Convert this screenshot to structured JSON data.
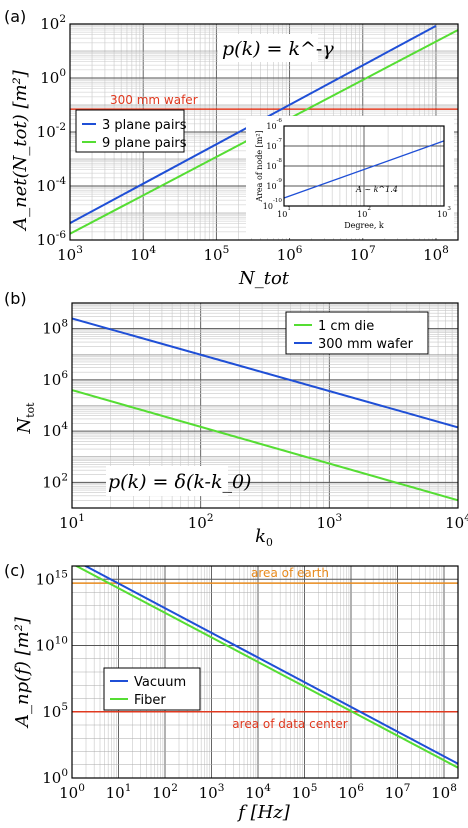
{
  "colors": {
    "blue": "#1f4fd6",
    "green": "#55dd33",
    "red": "#e0391f",
    "orange": "#e88a1c"
  },
  "chart_data": [
    {
      "panel": "(a)",
      "type": "line",
      "xscale": "log",
      "yscale": "log",
      "xlim": [
        1000,
        200000000
      ],
      "ylim": [
        1e-06,
        100
      ],
      "ylabel": "A_net(N_tot) [m²]",
      "xlabel": "N_tot",
      "xticks": [
        "10^3",
        "10^4",
        "10^5",
        "10^6",
        "10^7",
        "10^8"
      ],
      "yticks": [
        "10^-6",
        "10^-4",
        "10^-2",
        "10^0",
        "10^2"
      ],
      "equation": "p(k) = k^-γ",
      "series": [
        {
          "name": "3 plane pairs",
          "x": [
            1000,
            100000000
          ],
          "y": [
            4.2e-06,
            85
          ],
          "color": "blue"
        },
        {
          "name": "9 plane pairs",
          "x": [
            1000,
            200000000
          ],
          "y": [
            1.7e-06,
            60
          ],
          "color": "green"
        }
      ],
      "hlines": [
        {
          "label": "300 mm wafer",
          "y": 0.07,
          "color": "red"
        }
      ],
      "legend": "left",
      "inset": {
        "type": "line",
        "xscale": "log",
        "yscale": "log",
        "xlim": [
          10,
          1000
        ],
        "ylim": [
          1e-10,
          1e-06
        ],
        "xlabel": "Degree, k",
        "ylabel": "Area of node [m²]",
        "xticks": [
          "10^1",
          "10^2",
          "10^3"
        ],
        "yticks": [
          "10^-10",
          "10^-9",
          "10^-8",
          "10^-7",
          "10^-6"
        ],
        "annotation": "A ~ k^1.4",
        "series": [
          {
            "x": [
              10,
              1000
            ],
            "y": [
              2.5e-10,
              1.8e-07
            ]
          }
        ]
      }
    },
    {
      "panel": "(b)",
      "type": "line",
      "xscale": "log",
      "yscale": "log",
      "xlim": [
        10,
        10000
      ],
      "ylim": [
        10,
        1000000000
      ],
      "xlabel": "k_0",
      "ylabel": "N_tot",
      "xticks": [
        "10^1",
        "10^2",
        "10^3",
        "10^4"
      ],
      "yticks": [
        "10^2",
        "10^4",
        "10^6",
        "10^8"
      ],
      "equation": "p(k) = δ(k-k_0)",
      "series": [
        {
          "name": "1 cm die",
          "x": [
            10,
            10000
          ],
          "y": [
            400000,
            20
          ],
          "color": "green"
        },
        {
          "name": "300 mm wafer",
          "x": [
            10,
            10000
          ],
          "y": [
            250000000,
            14000
          ],
          "color": "blue"
        }
      ],
      "legend": "top-right"
    },
    {
      "panel": "(c)",
      "type": "line",
      "xscale": "log",
      "yscale": "log",
      "xlim": [
        1,
        200000000
      ],
      "ylim": [
        1,
        10000000000000000
      ],
      "xlabel": "f [Hz]",
      "ylabel": "A_np(f) [m²]",
      "xticks": [
        "10^0",
        "10^1",
        "10^2",
        "10^3",
        "10^4",
        "10^5",
        "10^6",
        "10^7",
        "10^8"
      ],
      "yticks": [
        "10^0",
        "10^5",
        "10^10",
        "10^15"
      ],
      "series": [
        {
          "name": "Vacuum",
          "x": [
            1,
            200000000
          ],
          "y": [
            3.5e+16,
            12
          ],
          "color": "blue"
        },
        {
          "name": "Fiber",
          "x": [
            1,
            200000000
          ],
          "y": [
            1.5e+16,
            6
          ],
          "color": "green"
        }
      ],
      "hlines": [
        {
          "label": "area of earth",
          "y": 510000000000000,
          "color": "orange"
        },
        {
          "label": "area of data center",
          "y": 100000,
          "color": "red"
        }
      ],
      "legend": "left"
    }
  ]
}
